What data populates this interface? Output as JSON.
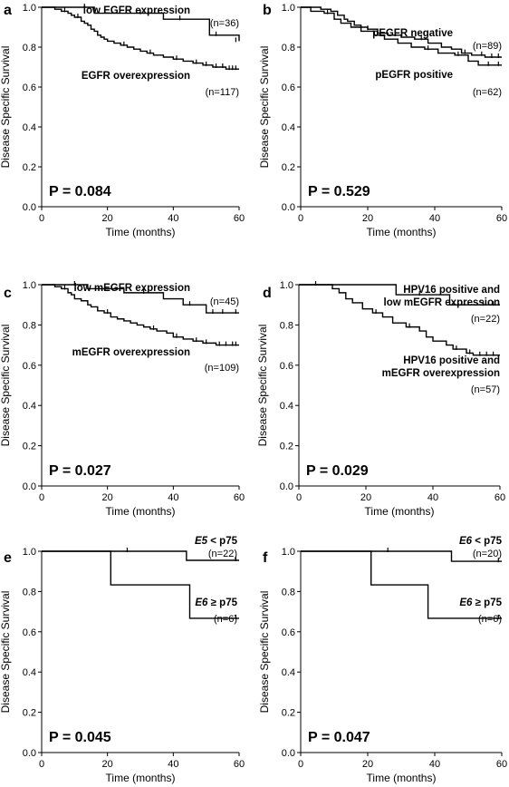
{
  "chart_data": [
    {
      "type": "line",
      "panel": "a",
      "xlabel": "Time (months)",
      "ylabel": "Disease Specific Survival",
      "xlim": [
        0,
        60
      ],
      "ylim": [
        0,
        1.0
      ],
      "xticks": [
        "0",
        "20",
        "40",
        "60"
      ],
      "yticks": [
        "0.0",
        "0.2",
        "0.4",
        "0.6",
        "0.8",
        "1.0"
      ],
      "p_value": "P = 0.084",
      "series": [
        {
          "label": "low EGFR expression",
          "n": "(n=36)",
          "steps": [
            [
              0,
              1.0
            ],
            [
              16,
              0.97
            ],
            [
              37,
              0.94
            ],
            [
              51,
              0.86
            ],
            [
              60,
              0.83
            ]
          ],
          "censors": [
            [
              13,
              1.0
            ],
            [
              30,
              0.97
            ],
            [
              42,
              0.94
            ],
            [
              53,
              0.86
            ],
            [
              59,
              0.83
            ]
          ]
        },
        {
          "label": "EGFR overexpression",
          "n": "(n=117)",
          "steps": [
            [
              0,
              1.0
            ],
            [
              4,
              0.99
            ],
            [
              6,
              0.98
            ],
            [
              8,
              0.97
            ],
            [
              9,
              0.96
            ],
            [
              10,
              0.95
            ],
            [
              12,
              0.93
            ],
            [
              13,
              0.92
            ],
            [
              14,
              0.91
            ],
            [
              15,
              0.89
            ],
            [
              16,
              0.88
            ],
            [
              17,
              0.86
            ],
            [
              18,
              0.85
            ],
            [
              19,
              0.84
            ],
            [
              20,
              0.83
            ],
            [
              22,
              0.82
            ],
            [
              24,
              0.81
            ],
            [
              26,
              0.8
            ],
            [
              28,
              0.79
            ],
            [
              30,
              0.78
            ],
            [
              32,
              0.77
            ],
            [
              34,
              0.76
            ],
            [
              37,
              0.75
            ],
            [
              40,
              0.74
            ],
            [
              43,
              0.73
            ],
            [
              46,
              0.72
            ],
            [
              49,
              0.71
            ],
            [
              52,
              0.7
            ],
            [
              56,
              0.69
            ],
            [
              60,
              0.69
            ]
          ],
          "censors": [
            [
              7,
              0.98
            ],
            [
              11,
              0.95
            ],
            [
              25,
              0.81
            ],
            [
              33,
              0.77
            ],
            [
              41,
              0.74
            ],
            [
              47,
              0.72
            ],
            [
              50,
              0.71
            ],
            [
              53,
              0.7
            ],
            [
              55,
              0.7
            ],
            [
              57,
              0.69
            ],
            [
              58,
              0.69
            ],
            [
              59,
              0.69
            ]
          ]
        }
      ]
    },
    {
      "type": "line",
      "panel": "b",
      "xlabel": "Time (months)",
      "ylabel": "Disease Specific Survival",
      "xlim": [
        0,
        60
      ],
      "ylim": [
        0,
        1.0
      ],
      "xticks": [
        "0",
        "20",
        "40",
        "60"
      ],
      "yticks": [
        "0.0",
        "0.2",
        "0.4",
        "0.6",
        "0.8",
        "1.0"
      ],
      "p_value": "P = 0.529",
      "series": [
        {
          "label": "pEGFR negative",
          "n": "(n=89)",
          "steps": [
            [
              0,
              1.0
            ],
            [
              6,
              0.99
            ],
            [
              9,
              0.98
            ],
            [
              11,
              0.96
            ],
            [
              13,
              0.94
            ],
            [
              14,
              0.93
            ],
            [
              16,
              0.91
            ],
            [
              18,
              0.9
            ],
            [
              20,
              0.89
            ],
            [
              23,
              0.87
            ],
            [
              26,
              0.86
            ],
            [
              30,
              0.85
            ],
            [
              34,
              0.84
            ],
            [
              38,
              0.82
            ],
            [
              42,
              0.8
            ],
            [
              45,
              0.79
            ],
            [
              48,
              0.77
            ],
            [
              51,
              0.76
            ],
            [
              55,
              0.75
            ],
            [
              60,
              0.75
            ]
          ],
          "censors": [
            [
              20,
              0.89
            ],
            [
              36,
              0.84
            ],
            [
              49,
              0.77
            ],
            [
              54,
              0.76
            ],
            [
              57,
              0.75
            ],
            [
              59,
              0.75
            ]
          ]
        },
        {
          "label": "pEGFR positive",
          "n": "(n=62)",
          "steps": [
            [
              0,
              1.0
            ],
            [
              3,
              0.98
            ],
            [
              7,
              0.97
            ],
            [
              10,
              0.94
            ],
            [
              12,
              0.92
            ],
            [
              15,
              0.9
            ],
            [
              18,
              0.88
            ],
            [
              22,
              0.86
            ],
            [
              25,
              0.84
            ],
            [
              29,
              0.82
            ],
            [
              33,
              0.8
            ],
            [
              37,
              0.79
            ],
            [
              41,
              0.77
            ],
            [
              46,
              0.76
            ],
            [
              50,
              0.73
            ],
            [
              53,
              0.71
            ],
            [
              60,
              0.71
            ]
          ],
          "censors": [
            [
              8,
              0.97
            ],
            [
              38,
              0.79
            ],
            [
              47,
              0.76
            ],
            [
              56,
              0.71
            ],
            [
              59,
              0.71
            ]
          ]
        }
      ]
    },
    {
      "type": "line",
      "panel": "c",
      "xlabel": "Time (months)",
      "ylabel": "Disease Specific Survival",
      "xlim": [
        0,
        60
      ],
      "ylim": [
        0,
        1.0
      ],
      "xticks": [
        "0",
        "20",
        "40",
        "60"
      ],
      "yticks": [
        "0.0",
        "0.2",
        "0.4",
        "0.6",
        "0.8",
        "1.0"
      ],
      "p_value": "P = 0.027",
      "series": [
        {
          "label": "low mEGFR expression",
          "n": "(n=45)",
          "steps": [
            [
              0,
              1.0
            ],
            [
              14,
              0.98
            ],
            [
              25,
              0.96
            ],
            [
              37,
              0.93
            ],
            [
              43,
              0.9
            ],
            [
              50,
              0.86
            ],
            [
              60,
              0.86
            ]
          ],
          "censors": [
            [
              10,
              1.0
            ],
            [
              31,
              0.96
            ],
            [
              45,
              0.9
            ],
            [
              52,
              0.86
            ],
            [
              55,
              0.86
            ],
            [
              59,
              0.86
            ]
          ]
        },
        {
          "label": "mEGFR overexpression",
          "n": "(n=109)",
          "steps": [
            [
              0,
              1.0
            ],
            [
              4,
              0.99
            ],
            [
              6,
              0.98
            ],
            [
              8,
              0.96
            ],
            [
              9,
              0.95
            ],
            [
              10,
              0.93
            ],
            [
              12,
              0.92
            ],
            [
              14,
              0.9
            ],
            [
              15,
              0.89
            ],
            [
              17,
              0.87
            ],
            [
              19,
              0.86
            ],
            [
              21,
              0.84
            ],
            [
              23,
              0.83
            ],
            [
              25,
              0.82
            ],
            [
              27,
              0.81
            ],
            [
              29,
              0.8
            ],
            [
              31,
              0.79
            ],
            [
              33,
              0.78
            ],
            [
              35,
              0.77
            ],
            [
              38,
              0.76
            ],
            [
              40,
              0.74
            ],
            [
              43,
              0.73
            ],
            [
              46,
              0.72
            ],
            [
              49,
              0.71
            ],
            [
              53,
              0.7
            ],
            [
              60,
              0.7
            ]
          ],
          "censors": [
            [
              7,
              0.98
            ],
            [
              20,
              0.86
            ],
            [
              34,
              0.78
            ],
            [
              41,
              0.74
            ],
            [
              47,
              0.72
            ],
            [
              50,
              0.71
            ],
            [
              54,
              0.7
            ],
            [
              56,
              0.7
            ],
            [
              58,
              0.7
            ],
            [
              59,
              0.7
            ]
          ]
        }
      ]
    },
    {
      "type": "line",
      "panel": "d",
      "xlabel": "Time (months)",
      "ylabel": "Disease Specific Survival",
      "xlim": [
        0,
        60
      ],
      "ylim": [
        0,
        1.0
      ],
      "xticks": [
        "0",
        "20",
        "40",
        "60"
      ],
      "yticks": [
        "0.0",
        "0.2",
        "0.4",
        "0.6",
        "0.8",
        "1.0"
      ],
      "p_value": "P = 0.029",
      "series": [
        {
          "label_lines": [
            "HPV16 positive and",
            "low mEGFR expression"
          ],
          "n": "(n=22)",
          "steps": [
            [
              0,
              1.0
            ],
            [
              29,
              0.95
            ],
            [
              45,
              0.9
            ],
            [
              60,
              0.9
            ]
          ],
          "censors": [
            [
              5,
              1.0
            ],
            [
              36,
              0.95
            ],
            [
              55,
              0.9
            ],
            [
              58,
              0.9
            ]
          ]
        },
        {
          "label_lines": [
            "HPV16 positive and",
            "mEGFR overexpression"
          ],
          "n": "(n=57)",
          "steps": [
            [
              0,
              1.0
            ],
            [
              10,
              0.98
            ],
            [
              12,
              0.96
            ],
            [
              14,
              0.93
            ],
            [
              16,
              0.91
            ],
            [
              19,
              0.88
            ],
            [
              22,
              0.86
            ],
            [
              25,
              0.84
            ],
            [
              28,
              0.81
            ],
            [
              32,
              0.79
            ],
            [
              36,
              0.77
            ],
            [
              38,
              0.74
            ],
            [
              40,
              0.72
            ],
            [
              44,
              0.7
            ],
            [
              46,
              0.68
            ],
            [
              50,
              0.66
            ],
            [
              52,
              0.65
            ],
            [
              60,
              0.65
            ]
          ],
          "censors": [
            [
              23,
              0.86
            ],
            [
              33,
              0.79
            ],
            [
              47,
              0.68
            ],
            [
              51,
              0.66
            ],
            [
              54,
              0.65
            ],
            [
              56,
              0.65
            ],
            [
              58,
              0.65
            ]
          ]
        }
      ]
    },
    {
      "type": "line",
      "panel": "e",
      "xlabel": "Time (months)",
      "ylabel": "Disease Specific Survival",
      "xlim": [
        0,
        60
      ],
      "ylim": [
        0,
        1.0
      ],
      "xticks": [
        "0",
        "20",
        "40",
        "60"
      ],
      "yticks": [
        "0.0",
        "0.2",
        "0.4",
        "0.6",
        "0.8",
        "1.0"
      ],
      "p_value": "P = 0.045",
      "series": [
        {
          "label_italic": "E5",
          "label_rest": " < p75",
          "n": "(n=22)",
          "steps": [
            [
              0,
              1.0
            ],
            [
              44,
              0.955
            ],
            [
              60,
              0.955
            ]
          ],
          "censors": [
            [
              26,
              1.0
            ],
            [
              59,
              0.955
            ]
          ]
        },
        {
          "label_italic": "E6",
          "label_rest": " ≥ p75",
          "n": "(n=6)",
          "steps": [
            [
              0,
              1.0
            ],
            [
              21,
              0.833
            ],
            [
              45,
              0.667
            ],
            [
              60,
              0.667
            ]
          ],
          "censors": [
            [
              59,
              0.667
            ]
          ]
        }
      ]
    },
    {
      "type": "line",
      "panel": "f",
      "xlabel": "Time (months)",
      "ylabel": "Disease Specific Survival",
      "xlim": [
        0,
        60
      ],
      "ylim": [
        0,
        1.0
      ],
      "xticks": [
        "0",
        "20",
        "40",
        "60"
      ],
      "yticks": [
        "0.0",
        "0.2",
        "0.4",
        "0.6",
        "0.8",
        "1.0"
      ],
      "p_value": "P = 0.047",
      "series": [
        {
          "label_italic": "E6",
          "label_rest": " < p75",
          "n": "(n=20)",
          "steps": [
            [
              0,
              1.0
            ],
            [
              45,
              0.95
            ],
            [
              60,
              0.95
            ]
          ],
          "censors": [
            [
              26,
              1.0
            ],
            [
              59,
              0.95
            ]
          ]
        },
        {
          "label_italic": "E6",
          "label_rest": " ≥ p75",
          "n": "(n=6)",
          "steps": [
            [
              0,
              1.0
            ],
            [
              21,
              0.833
            ],
            [
              38,
              0.667
            ],
            [
              60,
              0.667
            ]
          ],
          "censors": [
            [
              59,
              0.667
            ]
          ]
        }
      ]
    }
  ]
}
